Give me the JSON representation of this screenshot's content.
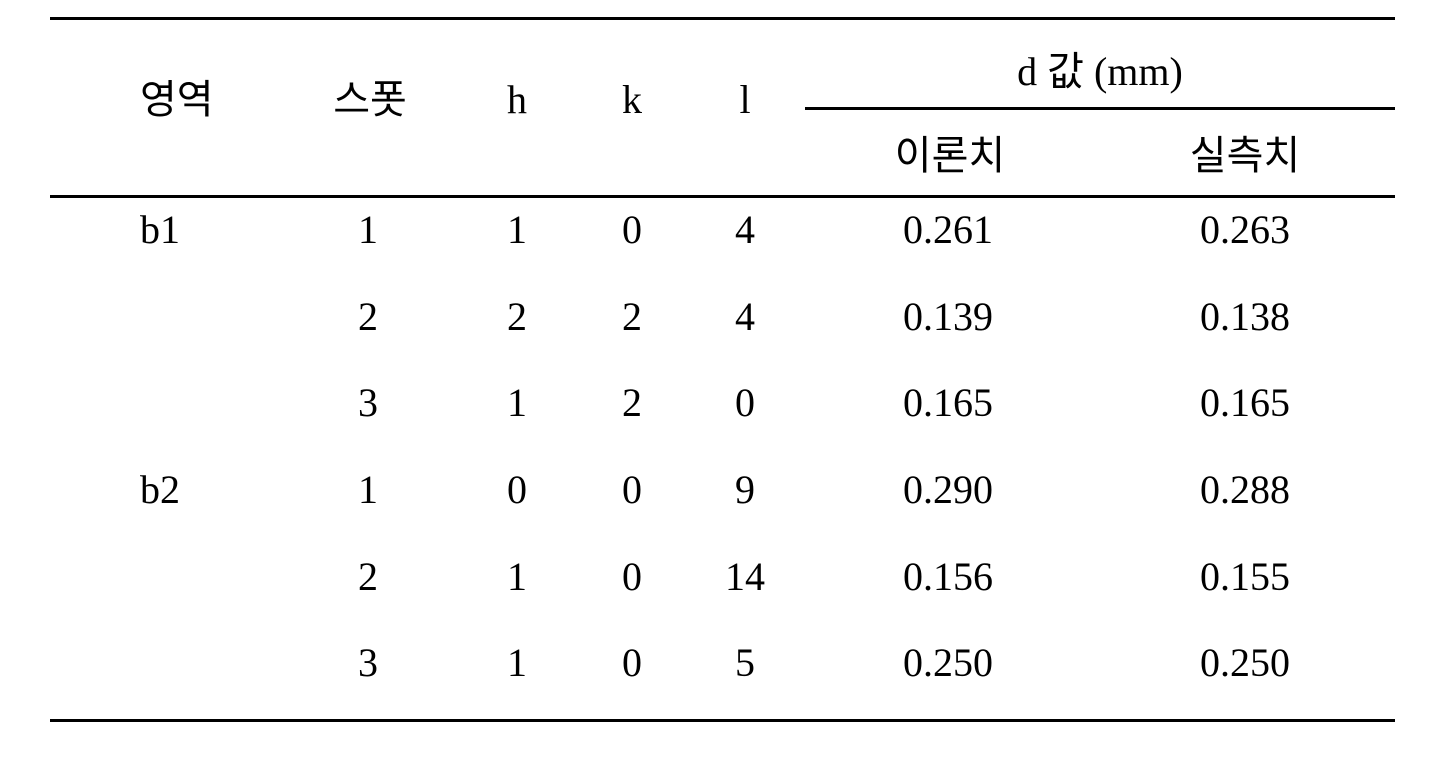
{
  "table": {
    "headers": {
      "region": "영역",
      "spot": "스폿",
      "h": "h",
      "k": "k",
      "l": "l",
      "d_group": "d 값 (mm)",
      "theoretical": "이론치",
      "measured": "실측치"
    },
    "rows": [
      {
        "region": "b1",
        "spot": "1",
        "h": "1",
        "k": "0",
        "l": "4",
        "theoretical": "0.261",
        "measured": "0.263"
      },
      {
        "region": "",
        "spot": "2",
        "h": "2",
        "k": "2",
        "l": "4",
        "theoretical": "0.139",
        "measured": "0.138"
      },
      {
        "region": "",
        "spot": "3",
        "h": "1",
        "k": "2",
        "l": "0",
        "theoretical": "0.165",
        "measured": "0.165"
      },
      {
        "region": "b2",
        "spot": "1",
        "h": "0",
        "k": "0",
        "l": "9",
        "theoretical": "0.290",
        "measured": "0.288"
      },
      {
        "region": "",
        "spot": "2",
        "h": "1",
        "k": "0",
        "l": "14",
        "theoretical": "0.156",
        "measured": "0.155"
      },
      {
        "region": "",
        "spot": "3",
        "h": "1",
        "k": "0",
        "l": "5",
        "theoretical": "0.250",
        "measured": "0.250"
      }
    ]
  }
}
